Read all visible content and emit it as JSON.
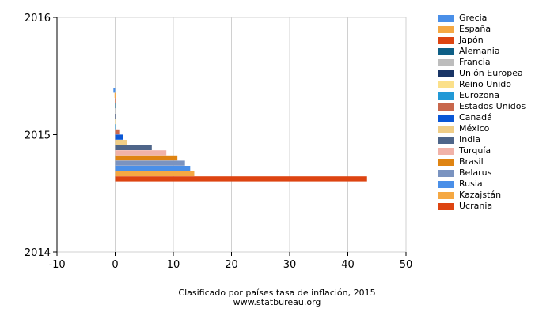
{
  "chart_data": {
    "type": "bar",
    "orientation": "horizontal",
    "x_ticks": [
      "-10",
      "0",
      "10",
      "20",
      "30",
      "40",
      "50"
    ],
    "y_ticks": [
      "2016",
      "2015",
      "2014"
    ],
    "xlim": [
      -10,
      50
    ],
    "grid": true,
    "legend_position": "right",
    "title": "Clasificado por países tasa de inflación, 2015",
    "source": "www.statbureau.org",
    "series": [
      {
        "name": "Grecia",
        "value": -0.3,
        "color": "#4a8fe8"
      },
      {
        "name": "España",
        "value": -0.1,
        "color": "#f5a843"
      },
      {
        "name": "Japón",
        "value": 0.2,
        "color": "#dd4411"
      },
      {
        "name": "Alemania",
        "value": 0.2,
        "color": "#0e5f86"
      },
      {
        "name": "Francia",
        "value": 0.0,
        "color": "#bdbdbd"
      },
      {
        "name": "Unión Europea",
        "value": 0.0,
        "color": "#1a3566"
      },
      {
        "name": "Reino Unido",
        "value": 0.05,
        "color": "#fbe08a"
      },
      {
        "name": "Eurozona",
        "value": 0.0,
        "color": "#2299d6"
      },
      {
        "name": "Estados Unidos",
        "value": 0.7,
        "color": "#c8674c"
      },
      {
        "name": "Canadá",
        "value": 1.4,
        "color": "#0a57d6"
      },
      {
        "name": "México",
        "value": 2.0,
        "color": "#f0cd86"
      },
      {
        "name": "India",
        "value": 6.3,
        "color": "#4e6589"
      },
      {
        "name": "Turquía",
        "value": 8.8,
        "color": "#f1b2a8"
      },
      {
        "name": "Brasil",
        "value": 10.7,
        "color": "#df8412"
      },
      {
        "name": "Belarus",
        "value": 12.0,
        "color": "#7a93c0"
      },
      {
        "name": "Rusia",
        "value": 12.9,
        "color": "#4a8fe8"
      },
      {
        "name": "Kazajstán",
        "value": 13.6,
        "color": "#f5a843"
      },
      {
        "name": "Ucrania",
        "value": 43.3,
        "color": "#dd4411"
      }
    ]
  }
}
